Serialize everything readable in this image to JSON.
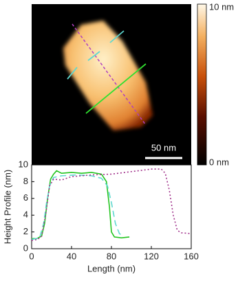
{
  "image": {
    "colorbar_max_label": "10 nm",
    "colorbar_min_label": "0 nm",
    "scale_bar_label": "50 nm"
  },
  "chart_data": {
    "type": "line",
    "x_label": "Length (nm)",
    "y_label": "Height Profile (nm)",
    "xlim": [
      0,
      160
    ],
    "xticks": [
      0,
      40,
      80,
      120,
      160
    ],
    "ylim": [
      0,
      10
    ],
    "yticks": [
      0,
      2,
      4,
      6,
      8,
      10
    ],
    "series": [
      {
        "color": "#22c41e",
        "dash": "solid",
        "x": [
          0,
          5,
          10,
          13,
          16,
          19,
          22,
          25,
          30,
          40,
          50,
          60,
          70,
          75,
          78,
          80,
          83,
          90,
          98
        ],
        "values": [
          1.2,
          1.2,
          1.5,
          3,
          6,
          8.3,
          8.9,
          9.3,
          9.0,
          9.1,
          9.0,
          9.1,
          8.9,
          8.0,
          5,
          2,
          1.4,
          1.3,
          1.4
        ]
      },
      {
        "color": "#5fd8d0",
        "dash": "dashed",
        "x": [
          0,
          8,
          12,
          15,
          18,
          22,
          30,
          45,
          60,
          70,
          76,
          80,
          84,
          88,
          92
        ],
        "values": [
          1.1,
          1.3,
          3,
          5.5,
          7.5,
          8.5,
          8.7,
          8.8,
          8.7,
          8.4,
          7.5,
          5.5,
          3,
          1.8,
          1.5
        ]
      },
      {
        "color": "#a0308a",
        "dash": "dotted",
        "x": [
          0,
          6,
          10,
          14,
          18,
          22,
          30,
          40,
          60,
          80,
          100,
          120,
          130,
          134,
          138,
          142,
          146,
          150,
          160
        ],
        "values": [
          1.0,
          1.1,
          1.5,
          4,
          7.5,
          8.3,
          8.2,
          8.6,
          8.8,
          8.9,
          9.2,
          9.5,
          9.5,
          9.0,
          7,
          4,
          2.2,
          1.9,
          1.8
        ]
      }
    ]
  }
}
